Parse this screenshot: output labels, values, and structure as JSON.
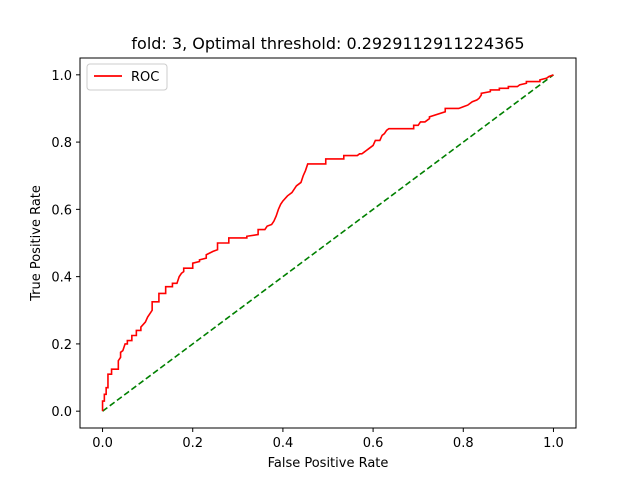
{
  "chart_data": {
    "type": "line",
    "title": "fold: 3, Optimal threshold: 0.2929112911224365",
    "xlabel": "False Positive Rate",
    "ylabel": "True Positive Rate",
    "xlim": [
      -0.05,
      1.05
    ],
    "ylim": [
      -0.05,
      1.05
    ],
    "xticks": [
      "0.0",
      "0.2",
      "0.4",
      "0.6",
      "0.8",
      "1.0"
    ],
    "yticks": [
      "0.0",
      "0.2",
      "0.4",
      "0.6",
      "0.8",
      "1.0"
    ],
    "grid": false,
    "legend_position": "top-left",
    "series": [
      {
        "name": "ROC",
        "color": "#ff0000",
        "style": "solid",
        "x": [
          0.0,
          0.0,
          0.004,
          0.004,
          0.008,
          0.008,
          0.012,
          0.012,
          0.02,
          0.02,
          0.035,
          0.035,
          0.04,
          0.04,
          0.045,
          0.05,
          0.055,
          0.055,
          0.065,
          0.065,
          0.075,
          0.075,
          0.085,
          0.085,
          0.095,
          0.1,
          0.105,
          0.11,
          0.11,
          0.125,
          0.125,
          0.14,
          0.14,
          0.155,
          0.155,
          0.165,
          0.17,
          0.175,
          0.18,
          0.18,
          0.2,
          0.2,
          0.215,
          0.215,
          0.23,
          0.23,
          0.245,
          0.255,
          0.255,
          0.28,
          0.28,
          0.32,
          0.32,
          0.345,
          0.345,
          0.36,
          0.365,
          0.375,
          0.38,
          0.385,
          0.39,
          0.395,
          0.4,
          0.41,
          0.42,
          0.425,
          0.43,
          0.44,
          0.445,
          0.45,
          0.455,
          0.495,
          0.495,
          0.535,
          0.535,
          0.565,
          0.57,
          0.575,
          0.58,
          0.585,
          0.59,
          0.6,
          0.605,
          0.615,
          0.62,
          0.625,
          0.63,
          0.635,
          0.64,
          0.69,
          0.69,
          0.7,
          0.705,
          0.715,
          0.725,
          0.725,
          0.76,
          0.76,
          0.79,
          0.8,
          0.81,
          0.815,
          0.82,
          0.83,
          0.835,
          0.84,
          0.84,
          0.86,
          0.86,
          0.88,
          0.88,
          0.9,
          0.9,
          0.92,
          0.925,
          0.94,
          0.94,
          0.97,
          0.97,
          0.985,
          0.99,
          1.0
        ],
        "y": [
          0.0,
          0.03,
          0.03,
          0.05,
          0.05,
          0.07,
          0.07,
          0.11,
          0.11,
          0.125,
          0.125,
          0.15,
          0.16,
          0.175,
          0.18,
          0.2,
          0.2,
          0.21,
          0.21,
          0.225,
          0.225,
          0.24,
          0.24,
          0.25,
          0.265,
          0.28,
          0.29,
          0.3,
          0.325,
          0.325,
          0.35,
          0.35,
          0.37,
          0.37,
          0.38,
          0.38,
          0.4,
          0.41,
          0.415,
          0.425,
          0.425,
          0.44,
          0.445,
          0.45,
          0.455,
          0.465,
          0.475,
          0.48,
          0.5,
          0.5,
          0.515,
          0.515,
          0.52,
          0.525,
          0.54,
          0.54,
          0.55,
          0.555,
          0.565,
          0.58,
          0.6,
          0.615,
          0.625,
          0.64,
          0.65,
          0.66,
          0.67,
          0.68,
          0.7,
          0.715,
          0.735,
          0.735,
          0.75,
          0.75,
          0.76,
          0.76,
          0.765,
          0.765,
          0.77,
          0.775,
          0.78,
          0.79,
          0.805,
          0.805,
          0.82,
          0.825,
          0.835,
          0.84,
          0.84,
          0.84,
          0.85,
          0.85,
          0.86,
          0.86,
          0.87,
          0.875,
          0.89,
          0.9,
          0.9,
          0.905,
          0.91,
          0.915,
          0.92,
          0.925,
          0.93,
          0.94,
          0.945,
          0.95,
          0.955,
          0.955,
          0.96,
          0.96,
          0.965,
          0.965,
          0.97,
          0.975,
          0.98,
          0.98,
          0.985,
          0.99,
          0.995,
          1.0
        ]
      },
      {
        "name": "",
        "color": "#008000",
        "style": "dashed",
        "x": [
          0.0,
          1.0
        ],
        "y": [
          0.0,
          1.0
        ]
      }
    ]
  }
}
